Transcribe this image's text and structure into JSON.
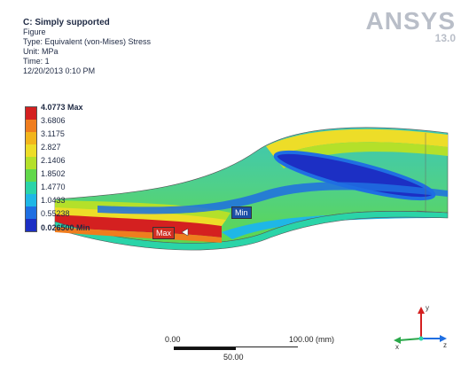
{
  "result": {
    "title": "C: Simply supported",
    "figure": "Figure",
    "type": "Type: Equivalent (von-Mises) Stress",
    "unit": "Unit: MPa",
    "time": "Time: 1",
    "date": "12/20/2013 0:10 PM"
  },
  "logo": {
    "brand": "ANSYS",
    "version": "13.0"
  },
  "legend": {
    "labels": [
      "4.0773 Max",
      "3.6806",
      "3.1175",
      "2.827",
      "2.1406",
      "1.8502",
      "1.4770",
      "1.0433",
      "0.55238",
      "0.026500 Min"
    ],
    "colors": [
      "#d42020",
      "#ef7d1e",
      "#f2b51c",
      "#eddd28",
      "#b4e02a",
      "#62d84b",
      "#2ad4a8",
      "#1fb7e6",
      "#1f6fe2",
      "#1c2fc4"
    ]
  },
  "probes": {
    "min": "Min",
    "max": "Max"
  },
  "scale": {
    "start": "0.00",
    "end": "100.00 (mm)",
    "mid": "50.00"
  },
  "triad": {
    "x": "x",
    "y": "y",
    "z": "z"
  }
}
